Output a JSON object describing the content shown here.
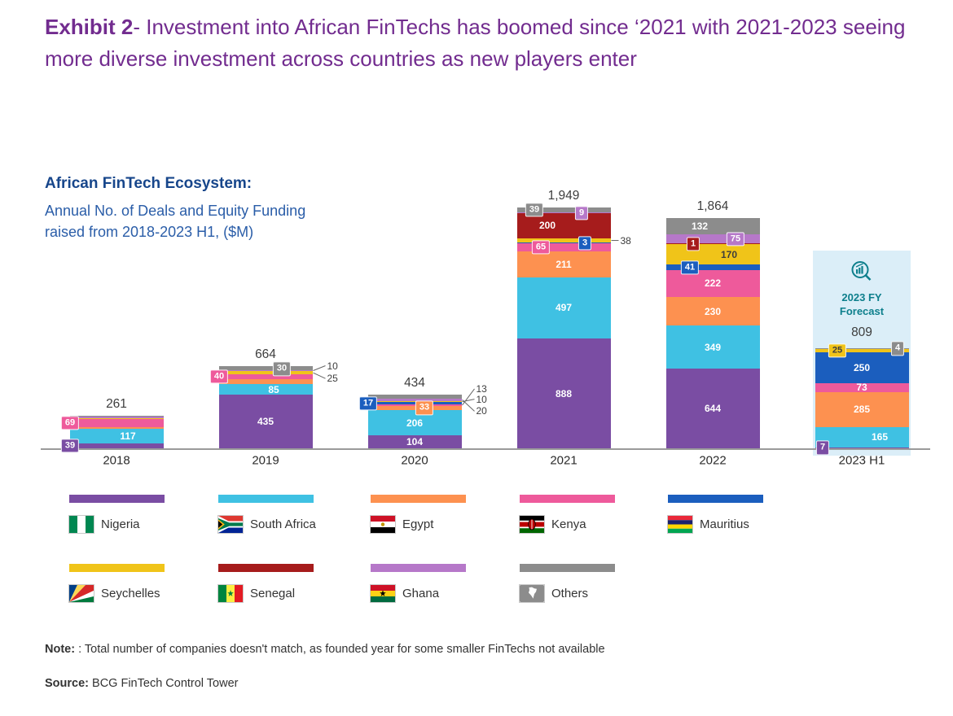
{
  "title": {
    "exhibit": "Exhibit 2",
    "text": "- Investment into African FinTechs has boomed since ‘2021 with 2021-2023 seeing more diverse investment across countries as new players enter"
  },
  "chart_header": {
    "line1": "African FinTech Ecosystem:",
    "line2": "Annual No. of Deals and Equity Funding raised from 2018-2023 H1, ($M)"
  },
  "forecast": {
    "label": "2023 FY Forecast",
    "category": "2023 H1"
  },
  "note": {
    "label": "Note:",
    "text": ": Total number of companies doesn't match, as founded year for some smaller FinTechs not available"
  },
  "source": {
    "label": "Source:",
    "text": "BCG FinTech Control Tower"
  },
  "chart_data": {
    "type": "bar",
    "stacked": true,
    "title": "African FinTech Ecosystem: Annual No. of Deals and Equity Funding raised from 2018-2023 H1, ($M)",
    "categories": [
      "2018",
      "2019",
      "2020",
      "2021",
      "2022",
      "2023 H1"
    ],
    "totals": [
      "261",
      "664",
      "434",
      "1,949",
      "1,864",
      "809"
    ],
    "legend_position": "bottom",
    "series": [
      {
        "name": "Nigeria",
        "color": "#7a4da3",
        "values": [
          39,
          435,
          104,
          888,
          644,
          7
        ]
      },
      {
        "name": "South Africa",
        "color": "#3fc1e3",
        "values": [
          117,
          85,
          206,
          497,
          349,
          165
        ]
      },
      {
        "name": "Egypt",
        "color": "#fd9150",
        "values": [
          13,
          39,
          33,
          211,
          230,
          285
        ]
      },
      {
        "name": "Kenya",
        "color": "#ee5a9b",
        "values": [
          69,
          40,
          13,
          65,
          222,
          73
        ]
      },
      {
        "name": "Mauritius",
        "color": "#1b5ebe",
        "values": [
          0,
          0,
          17,
          3,
          41,
          250
        ]
      },
      {
        "name": "Seychelles",
        "color": "#f0c419",
        "values": [
          8,
          25,
          10,
          38,
          170,
          25
        ]
      },
      {
        "name": "Senegal",
        "color": "#a61c1c",
        "values": [
          0,
          0,
          0,
          200,
          1,
          0
        ]
      },
      {
        "name": "Ghana",
        "color": "#b678c9",
        "values": [
          8,
          10,
          20,
          9,
          75,
          0
        ]
      },
      {
        "name": "Others",
        "color": "#8c8c8c",
        "values": [
          7,
          30,
          31,
          39,
          132,
          4
        ]
      }
    ],
    "labels": [
      {
        "c": 0,
        "s": 0,
        "t": "39",
        "m": "box",
        "dx": -57
      },
      {
        "c": 0,
        "s": 1,
        "t": "117",
        "m": "in",
        "dx": 14
      },
      {
        "c": 0,
        "s": 3,
        "t": "69",
        "m": "box",
        "dx": -57
      },
      {
        "c": 1,
        "s": 0,
        "t": "435",
        "m": "in"
      },
      {
        "c": 1,
        "s": 1,
        "t": "85",
        "m": "in",
        "dx": 10
      },
      {
        "c": 1,
        "s": 3,
        "t": "40",
        "m": "box",
        "dx": -57
      },
      {
        "c": 1,
        "s": 5,
        "t": "25",
        "m": "out",
        "dy": 7
      },
      {
        "c": 1,
        "s": 7,
        "t": "10",
        "m": "out",
        "dy": -6
      },
      {
        "c": 1,
        "s": 8,
        "t": "30",
        "m": "box",
        "dx": 20,
        "dy": 1
      },
      {
        "c": 2,
        "s": 0,
        "t": "104",
        "m": "in"
      },
      {
        "c": 2,
        "s": 1,
        "t": "206",
        "m": "in"
      },
      {
        "c": 2,
        "s": 2,
        "t": "33",
        "m": "box",
        "dx": 12
      },
      {
        "c": 2,
        "s": 3,
        "t": "13",
        "m": "out",
        "dy": -20
      },
      {
        "c": 2,
        "s": 4,
        "t": "17",
        "m": "box",
        "dx": -57
      },
      {
        "c": 2,
        "s": 5,
        "t": "10",
        "m": "out",
        "dy": -3
      },
      {
        "c": 2,
        "s": 7,
        "t": "20",
        "m": "out",
        "dy": 14
      },
      {
        "c": 3,
        "s": 0,
        "t": "888",
        "m": "in"
      },
      {
        "c": 3,
        "s": 1,
        "t": "497",
        "m": "in"
      },
      {
        "c": 3,
        "s": 2,
        "t": "211",
        "m": "in"
      },
      {
        "c": 3,
        "s": 3,
        "t": "65",
        "m": "box",
        "dx": -28
      },
      {
        "c": 3,
        "s": 4,
        "t": "3",
        "m": "box",
        "dx": 26
      },
      {
        "c": 3,
        "s": 5,
        "t": "38",
        "m": "out",
        "dx": -6
      },
      {
        "c": 3,
        "s": 6,
        "t": "200",
        "m": "in",
        "dx": -20
      },
      {
        "c": 3,
        "s": 7,
        "t": "9",
        "m": "box",
        "dx": 22
      },
      {
        "c": 3,
        "s": 8,
        "t": "39",
        "m": "box",
        "dx": -36
      },
      {
        "c": 4,
        "s": 0,
        "t": "644",
        "m": "in"
      },
      {
        "c": 4,
        "s": 1,
        "t": "349",
        "m": "in"
      },
      {
        "c": 4,
        "s": 2,
        "t": "230",
        "m": "in"
      },
      {
        "c": 4,
        "s": 3,
        "t": "222",
        "m": "in"
      },
      {
        "c": 4,
        "s": 4,
        "t": "41",
        "m": "box",
        "dx": -28
      },
      {
        "c": 4,
        "s": 5,
        "t": "170",
        "m": "in",
        "dx": 20,
        "dark": true
      },
      {
        "c": 4,
        "s": 6,
        "t": "1",
        "m": "box",
        "dx": -24
      },
      {
        "c": 4,
        "s": 7,
        "t": "75",
        "m": "box",
        "dx": 28
      },
      {
        "c": 4,
        "s": 8,
        "t": "132",
        "m": "in",
        "dx": -16
      },
      {
        "c": 5,
        "s": 0,
        "t": "7",
        "m": "box",
        "dx": -48
      },
      {
        "c": 5,
        "s": 1,
        "t": "165",
        "m": "in",
        "dx": 22
      },
      {
        "c": 5,
        "s": 2,
        "t": "285",
        "m": "in"
      },
      {
        "c": 5,
        "s": 3,
        "t": "73",
        "m": "in"
      },
      {
        "c": 5,
        "s": 4,
        "t": "250",
        "m": "in"
      },
      {
        "c": 5,
        "s": 5,
        "t": "25",
        "m": "box",
        "dx": -30,
        "dark": true
      },
      {
        "c": 5,
        "s": 8,
        "t": "4",
        "m": "box",
        "dx": 44
      }
    ]
  },
  "legend": {
    "items": [
      {
        "name": "Nigeria",
        "color": "#7a4da3",
        "flag": "nigeria"
      },
      {
        "name": "South Africa",
        "color": "#3fc1e3",
        "flag": "south-africa"
      },
      {
        "name": "Egypt",
        "color": "#fd9150",
        "flag": "egypt"
      },
      {
        "name": "Kenya",
        "color": "#ee5a9b",
        "flag": "kenya"
      },
      {
        "name": "Mauritius",
        "color": "#1b5ebe",
        "flag": "mauritius"
      },
      {
        "name": "Seychelles",
        "color": "#f0c419",
        "flag": "seychelles"
      },
      {
        "name": "Senegal",
        "color": "#a61c1c",
        "flag": "senegal"
      },
      {
        "name": "Ghana",
        "color": "#b678c9",
        "flag": "ghana"
      },
      {
        "name": "Others",
        "color": "#8c8c8c",
        "flag": "others"
      }
    ]
  }
}
